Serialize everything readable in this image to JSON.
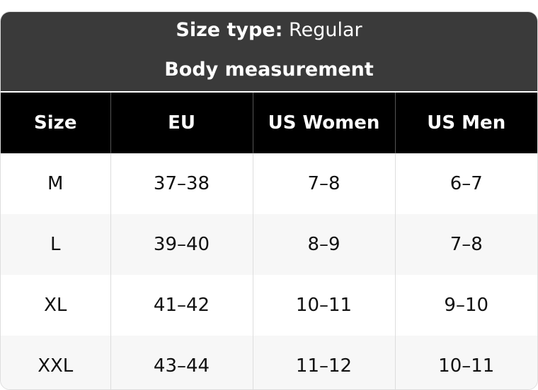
{
  "header": {
    "label": "Size type:",
    "value": "Regular",
    "subtitle": "Body measurement"
  },
  "table": {
    "columns": [
      "Size",
      "EU",
      "US Women",
      "US Men"
    ],
    "rows": [
      [
        "M",
        "37–38",
        "7–8",
        "6–7"
      ],
      [
        "L",
        "39–40",
        "8–9",
        "7–8"
      ],
      [
        "XL",
        "41–42",
        "10–11",
        "9–10"
      ],
      [
        "XXL",
        "43–44",
        "11–12",
        "10–11"
      ]
    ]
  }
}
